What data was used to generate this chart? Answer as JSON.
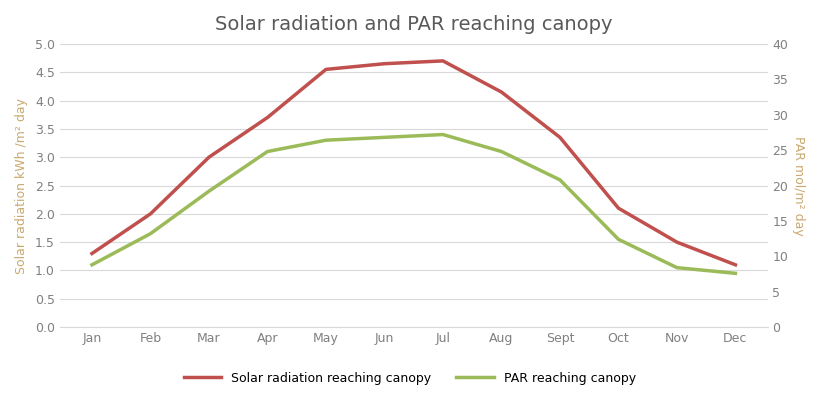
{
  "title": "Solar radiation and PAR reaching canopy",
  "months": [
    "Jan",
    "Feb",
    "Mar",
    "Apr",
    "May",
    "Jun",
    "Jul",
    "Aug",
    "Sept",
    "Oct",
    "Nov",
    "Dec"
  ],
  "solar_radiation": [
    1.3,
    2.0,
    3.0,
    3.7,
    4.55,
    4.65,
    4.7,
    4.15,
    3.35,
    2.1,
    1.5,
    1.1
  ],
  "par_left": [
    1.1,
    1.65,
    2.4,
    3.1,
    3.3,
    3.35,
    3.4,
    3.1,
    2.6,
    1.55,
    1.05,
    0.95
  ],
  "solar_color": "#c0504d",
  "par_color": "#9bbb59",
  "ylabel_left": "Solar radiation kWh /m² day",
  "ylabel_right": "PAR mol/m² day",
  "ylim_left": [
    0.0,
    5.0
  ],
  "ylim_right": [
    0,
    40
  ],
  "yticks_left": [
    0.0,
    0.5,
    1.0,
    1.5,
    2.0,
    2.5,
    3.0,
    3.5,
    4.0,
    4.5,
    5.0
  ],
  "yticks_right": [
    0,
    5,
    10,
    15,
    20,
    25,
    30,
    35,
    40
  ],
  "legend_solar": "Solar radiation reaching canopy",
  "legend_par": "PAR reaching canopy",
  "background_color": "#ffffff",
  "grid_color": "#d9d9d9",
  "title_color": "#595959",
  "axis_label_color": "#c9a96e",
  "tick_color": "#808080",
  "title_fontsize": 14,
  "axis_label_fontsize": 9,
  "tick_fontsize": 9,
  "legend_fontsize": 9,
  "linewidth": 2.5
}
